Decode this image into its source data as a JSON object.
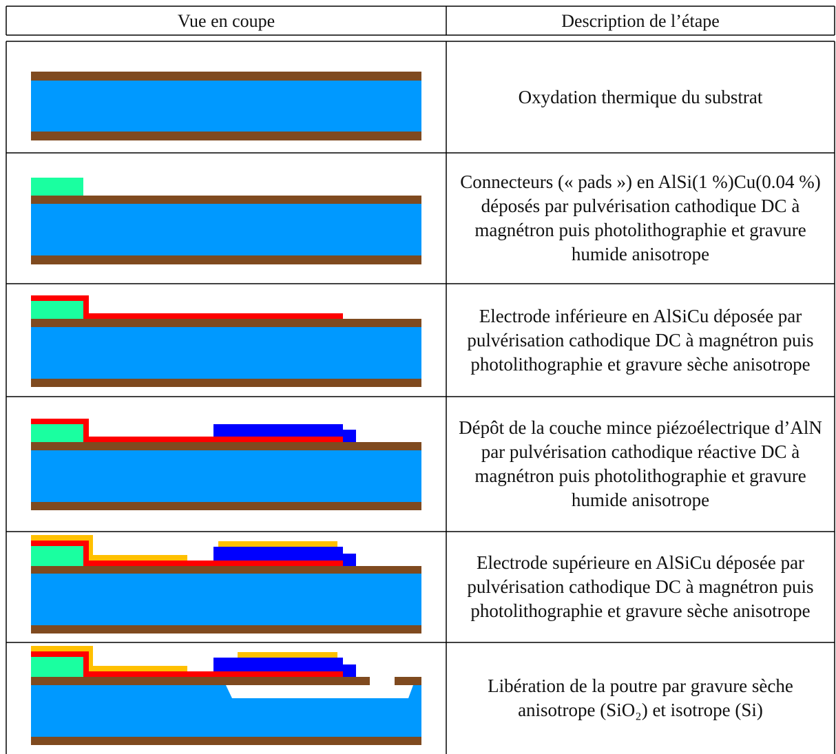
{
  "table": {
    "columns": [
      "Vue en coupe",
      "Description de l’étape"
    ],
    "rows": [
      {
        "description": "Oxydation thermique du substrat"
      },
      {
        "description": "Connecteurs (« pads ») en AlSi(1 %)Cu(0.04 %) déposés par pulvérisation cathodique DC à magnétron puis photolithographie et gravure humide anisotrope"
      },
      {
        "description": "Electrode inférieure en AlSiCu déposée par pulvérisation cathodique DC à magnétron puis photolithographie et gravure sèche anisotrope"
      },
      {
        "description": "Dépôt de la couche mince piézoélectrique d’AlN par pulvérisation cathodique réactive DC à magnétron puis photolithographie et gravure humide anisotrope"
      },
      {
        "description": "Electrode supérieure en AlSiCu déposée par pulvérisation cathodique DC à magnétron puis photolithographie et gravure sèche anisotrope"
      },
      {
        "description": "Libération de la poutre par gravure sèche anisotrope (SiO₂) et isotrope (Si)"
      }
    ]
  }
}
